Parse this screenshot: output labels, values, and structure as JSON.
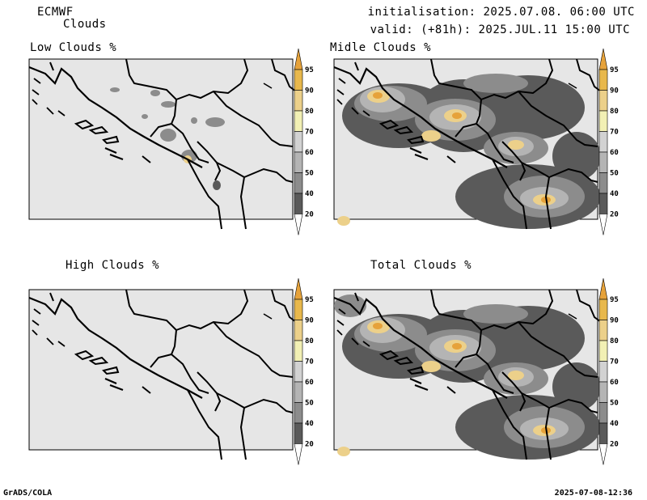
{
  "header": {
    "organisation": "ECMWF",
    "product": "Clouds",
    "initialisation": "initialisation: 2025.07.08. 06:00 UTC",
    "valid": "valid: (+81h): 2025.JUL.11 15:00 UTC"
  },
  "panels": [
    {
      "id": "low",
      "title": "Low Clouds %"
    },
    {
      "id": "middle",
      "title": "Midle Clouds %"
    },
    {
      "id": "high",
      "title": "High Clouds %"
    },
    {
      "id": "total",
      "title": "Total Clouds %"
    }
  ],
  "colorbar": {
    "levels": [
      "20",
      "40",
      "50",
      "60",
      "70",
      "80",
      "90",
      "95"
    ],
    "colors": [
      "#ffffff",
      "#5a5a5a",
      "#8c8c8c",
      "#b4b4b4",
      "#d2d2d2",
      "#f2f0b4",
      "#ecd08a",
      "#e8b84c",
      "#e6a23a"
    ],
    "land_color": "#e6e6e6"
  },
  "footer": {
    "left": "GrADS/COLA",
    "right": "2025-07-08-12:36"
  }
}
